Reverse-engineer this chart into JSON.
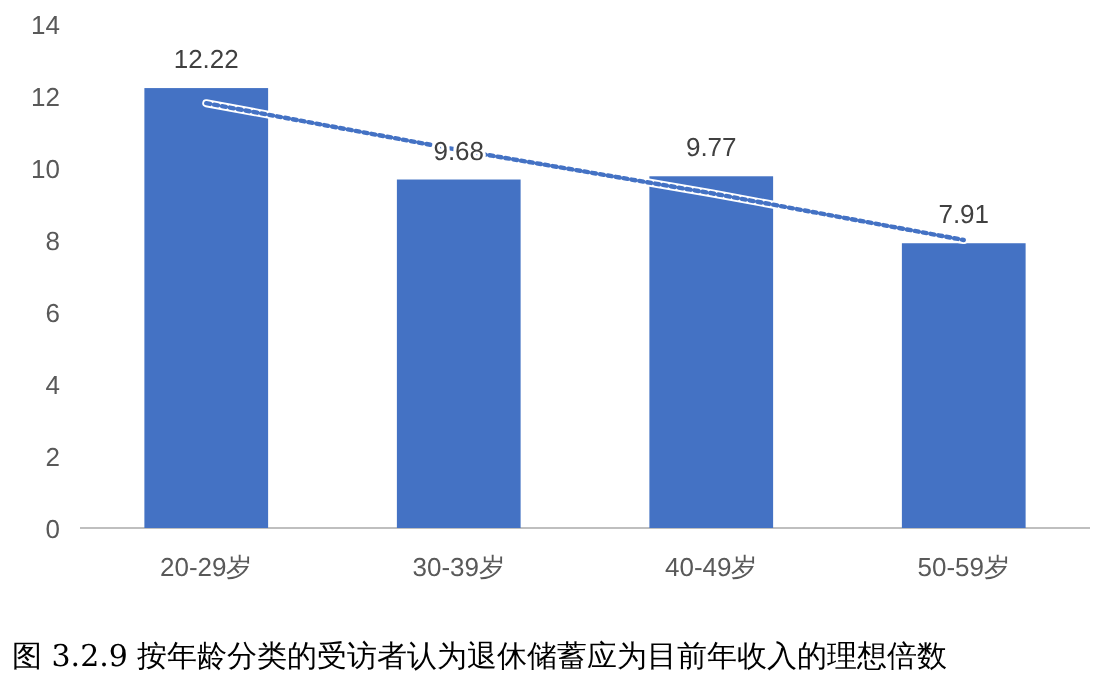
{
  "chart_data": {
    "type": "bar",
    "title": "图 3.2.9  按年龄分类的受访者认为退休储蓄应为目前年收入的理想倍数",
    "categories": [
      "20-29岁",
      "30-39岁",
      "40-49岁",
      "50-59岁"
    ],
    "series": [
      {
        "color": "#4472c4",
        "values": [
          12.22,
          9.68,
          9.77,
          7.91
        ],
        "value_labels": [
          "12.22",
          "9.68",
          "9.77",
          "7.91"
        ]
      },
      {
        "type": "line",
        "color": "#4472c4",
        "line_style": "dotted",
        "values": [
          11.8,
          10.5,
          9.3,
          8.0
        ]
      }
    ],
    "ylim": [
      0,
      14
    ],
    "yticks": [
      0,
      2,
      4,
      6,
      8,
      10,
      12,
      14
    ]
  }
}
